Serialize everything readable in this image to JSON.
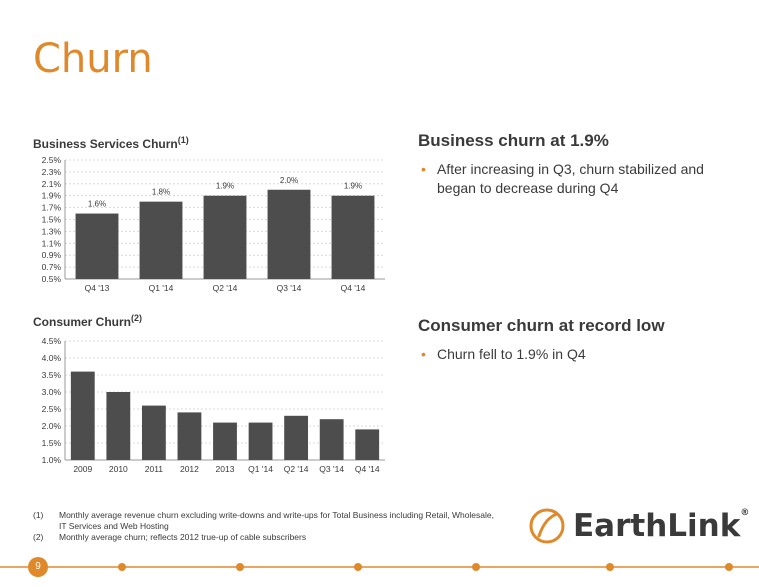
{
  "title": "Churn",
  "business_chart_title": "Business Services Churn",
  "business_chart_sup": "(1)",
  "consumer_chart_title": "Consumer Churn",
  "consumer_chart_sup": "(2)",
  "right": {
    "business_heading": "Business churn at 1.9%",
    "business_bullet": "After increasing in Q3, churn stabilized and began to decrease during Q4",
    "consumer_heading": "Consumer churn at record low",
    "consumer_bullet": "Churn fell to 1.9% in Q4"
  },
  "footnotes": [
    {
      "num": "(1)",
      "text": "Monthly average revenue churn excluding write-downs and write-ups for Total Business including Retail, Wholesale, IT Services and Web Hosting"
    },
    {
      "num": "(2)",
      "text": "Monthly average churn; reflects 2012 true-up of cable subscribers"
    }
  ],
  "logo_text": "EarthLink",
  "logo_reg": "®",
  "page_number": "9",
  "colors": {
    "accent": "#e0892b",
    "bar": "#4d4d4d",
    "text": "#3a3a3a"
  },
  "chart_data": [
    {
      "type": "bar",
      "title": "Business Services Churn(1)",
      "categories": [
        "Q4 '13",
        "Q1 '14",
        "Q2 '14",
        "Q3 '14",
        "Q4 '14"
      ],
      "values": [
        1.6,
        1.8,
        1.9,
        2.0,
        1.9
      ],
      "data_labels": [
        "1.6%",
        "1.8%",
        "1.9%",
        "2.0%",
        "1.9%"
      ],
      "yticks": [
        "0.5%",
        "0.7%",
        "0.9%",
        "1.1%",
        "1.3%",
        "1.5%",
        "1.7%",
        "1.9%",
        "2.1%",
        "2.3%",
        "2.5%"
      ],
      "ylim": [
        0.5,
        2.5
      ],
      "grid": true
    },
    {
      "type": "bar",
      "title": "Consumer Churn(2)",
      "categories": [
        "2009",
        "2010",
        "2011",
        "2012",
        "2013",
        "Q1 '14",
        "Q2 '14",
        "Q3 '14",
        "Q4 '14"
      ],
      "values": [
        3.6,
        3.0,
        2.6,
        2.4,
        2.1,
        2.1,
        2.3,
        2.2,
        1.9
      ],
      "yticks": [
        "1.0%",
        "1.5%",
        "2.0%",
        "2.5%",
        "3.0%",
        "3.5%",
        "4.0%",
        "4.5%"
      ],
      "ylim": [
        1.0,
        4.5
      ],
      "grid": true
    }
  ]
}
